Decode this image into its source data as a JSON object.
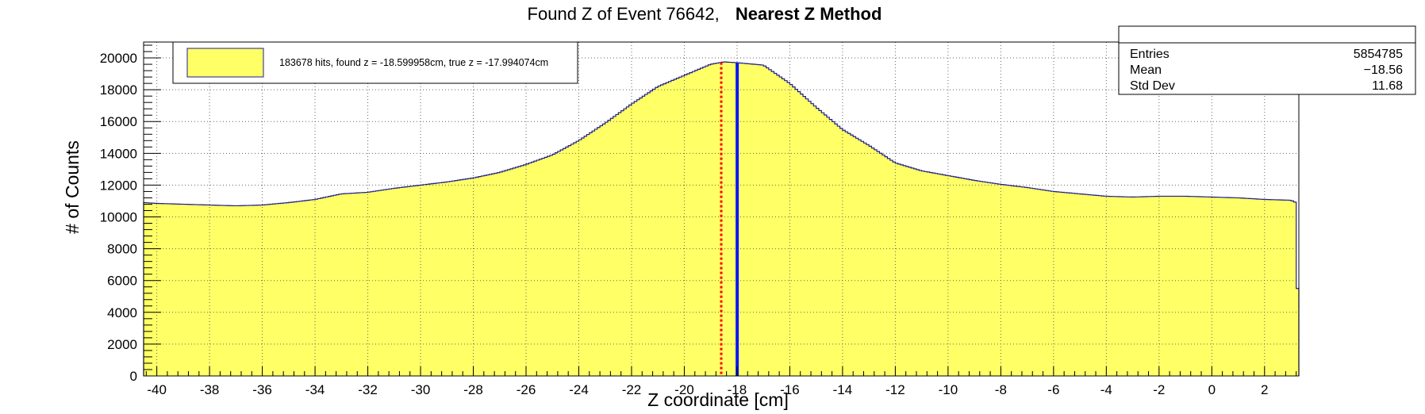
{
  "title": {
    "prefix": "Found Z of Event 76642,",
    "method": "Nearest Z Method"
  },
  "stats": {
    "rows": [
      {
        "label": "Entries",
        "value": "5854785"
      },
      {
        "label": "Mean",
        "value": "−18.56"
      },
      {
        "label": "Std Dev",
        "value": "11.68"
      }
    ]
  },
  "legend": {
    "text": "183678 hits, found z = -18.599958cm, true z = -17.994074cm"
  },
  "colors": {
    "fill": "#ffff66",
    "outline": "#1e1e8c",
    "true_line": "#0a14ff",
    "found_line": "#ff0000",
    "grid": "#666666"
  },
  "chart_data": {
    "type": "histogram",
    "title": "Found Z of Event 76642, Nearest Z Method",
    "xlabel": "Z coordinate [cm]",
    "ylabel": "# of Counts",
    "xlim": [
      -40.5,
      3.3
    ],
    "ylim": [
      0,
      21000
    ],
    "x_ticks": [
      -40,
      -38,
      -36,
      -34,
      -32,
      -30,
      -28,
      -26,
      -24,
      -22,
      -20,
      -18,
      -16,
      -14,
      -12,
      -10,
      -8,
      -6,
      -4,
      -2,
      0,
      2
    ],
    "y_ticks": [
      0,
      2000,
      4000,
      6000,
      8000,
      10000,
      12000,
      14000,
      16000,
      18000,
      20000
    ],
    "grid": true,
    "legend_position": "top-left",
    "stats_position": "top-right",
    "bin_width": 0.1,
    "profile": [
      [
        -40.5,
        5500
      ],
      [
        -40.45,
        10900
      ],
      [
        -40,
        10850
      ],
      [
        -39,
        10800
      ],
      [
        -38,
        10750
      ],
      [
        -37,
        10700
      ],
      [
        -36,
        10750
      ],
      [
        -35,
        10900
      ],
      [
        -34,
        11100
      ],
      [
        -33,
        11450
      ],
      [
        -32,
        11550
      ],
      [
        -31,
        11800
      ],
      [
        -30,
        12000
      ],
      [
        -29,
        12200
      ],
      [
        -28,
        12450
      ],
      [
        -27,
        12800
      ],
      [
        -26,
        13300
      ],
      [
        -25,
        13900
      ],
      [
        -24,
        14800
      ],
      [
        -23,
        15900
      ],
      [
        -22,
        17100
      ],
      [
        -21,
        18200
      ],
      [
        -20,
        18900
      ],
      [
        -19,
        19600
      ],
      [
        -18.5,
        19750
      ],
      [
        -18,
        19700
      ],
      [
        -17,
        19550
      ],
      [
        -16,
        18400
      ],
      [
        -15,
        16900
      ],
      [
        -14,
        15500
      ],
      [
        -13,
        14500
      ],
      [
        -12,
        13400
      ],
      [
        -11,
        12900
      ],
      [
        -10,
        12600
      ],
      [
        -9,
        12300
      ],
      [
        -8,
        12050
      ],
      [
        -7,
        11850
      ],
      [
        -6,
        11600
      ],
      [
        -5,
        11450
      ],
      [
        -4,
        11300
      ],
      [
        -3,
        11250
      ],
      [
        -2,
        11300
      ],
      [
        -1,
        11300
      ],
      [
        0,
        11250
      ],
      [
        1,
        11200
      ],
      [
        2,
        11100
      ],
      [
        3,
        11050
      ],
      [
        3.2,
        10900
      ],
      [
        3.25,
        5500
      ]
    ],
    "found_z": -18.599958,
    "true_z": -17.994074
  }
}
